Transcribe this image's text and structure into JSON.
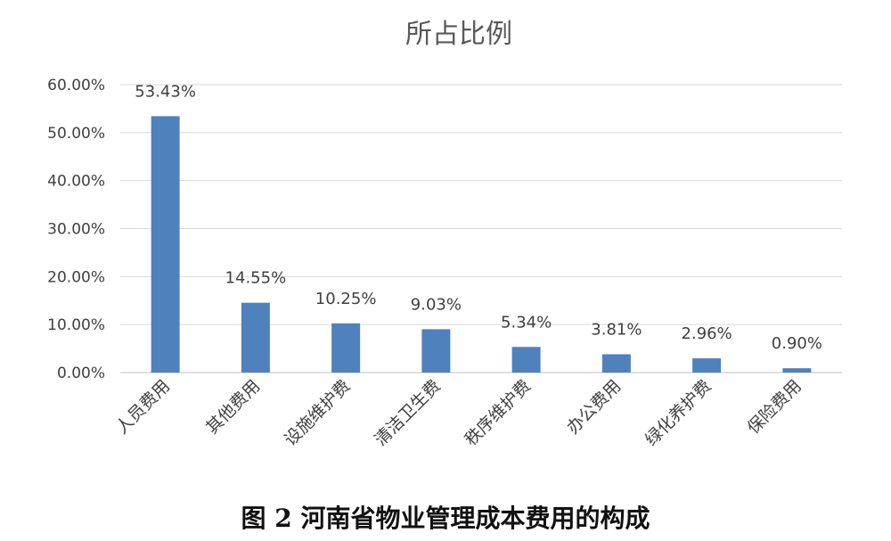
{
  "chart_data": {
    "type": "bar",
    "title": "所占比例",
    "categories": [
      "人员费用",
      "其他费用",
      "设施维护费",
      "清洁卫生费",
      "秩序维护费",
      "办公费用",
      "绿化养护费",
      "保险费用"
    ],
    "values": [
      53.43,
      14.55,
      10.25,
      9.03,
      5.34,
      3.81,
      2.96,
      0.9
    ],
    "data_labels": [
      "53.43%",
      "14.55%",
      "10.25%",
      "9.03%",
      "5.34%",
      "3.81%",
      "2.96%",
      "0.90%"
    ],
    "y_ticks": [
      "0.00%",
      "10.00%",
      "20.00%",
      "30.00%",
      "40.00%",
      "50.00%",
      "60.00%"
    ],
    "ylim": [
      0,
      60
    ],
    "grid": true,
    "legend": "none",
    "bar_color": "#4f81bd"
  },
  "caption": "图 2  河南省物业管理成本费用的构成"
}
